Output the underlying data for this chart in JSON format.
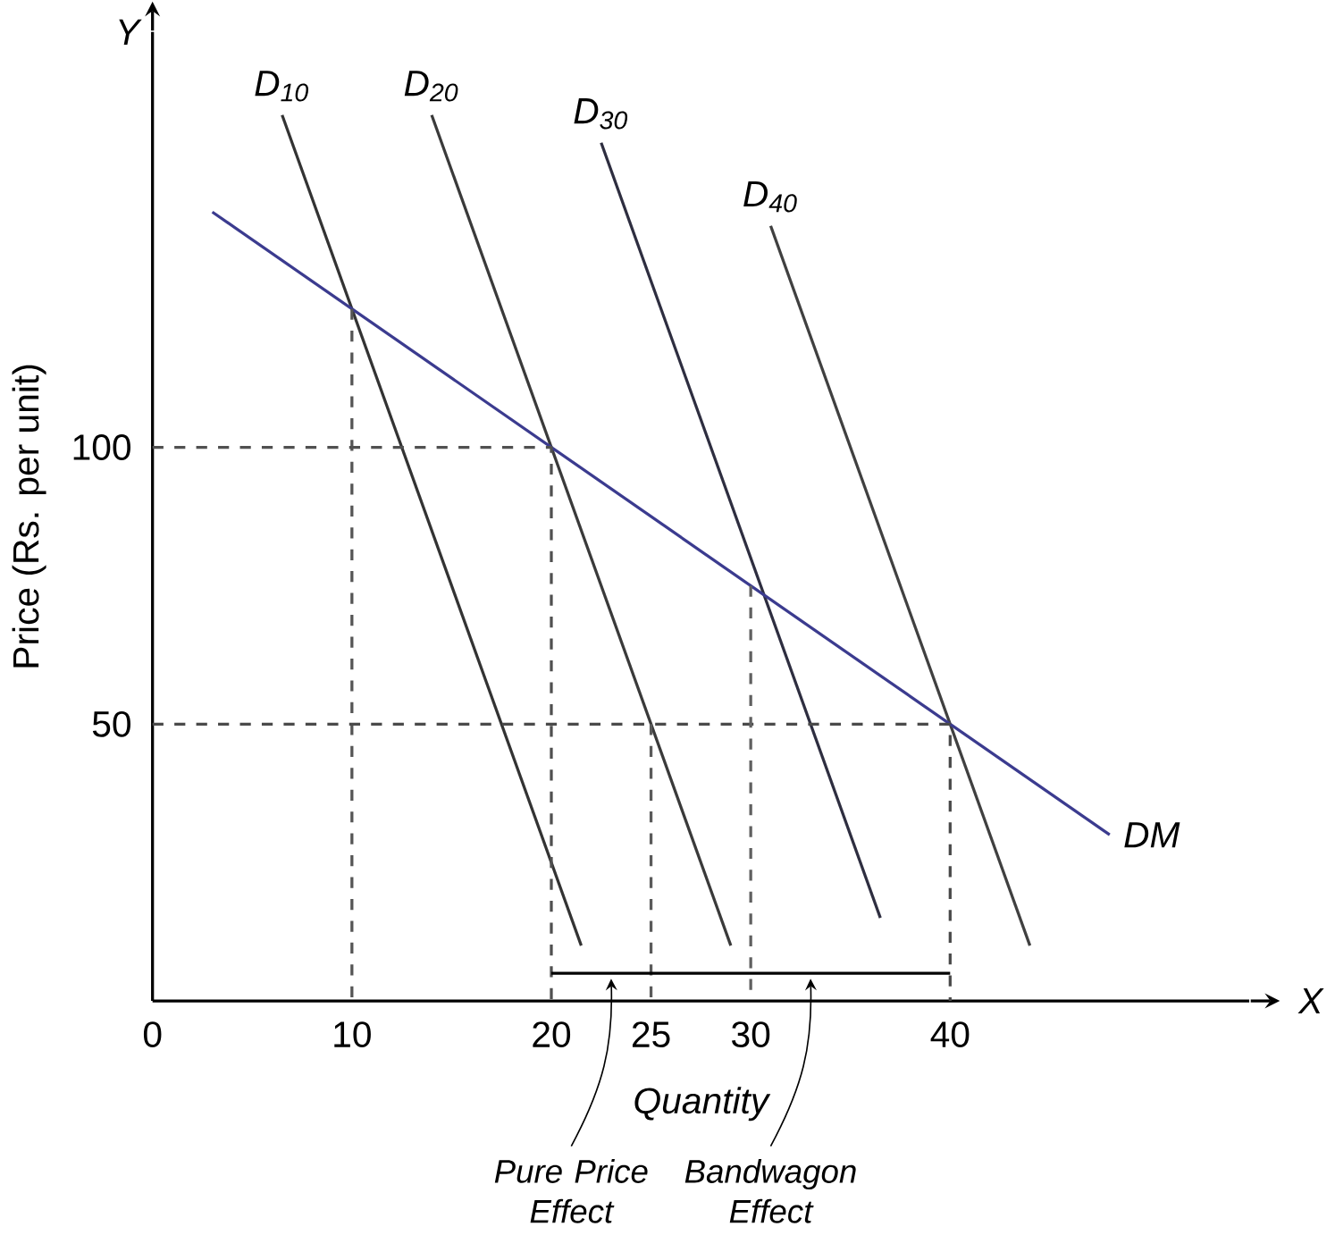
{
  "chart_data": {
    "type": "line",
    "xlabel": "Quantity",
    "ylabel": "Price (Rs. per unit)",
    "xlim": [
      0,
      55
    ],
    "ylim": [
      0,
      175
    ],
    "xticks": [
      0,
      10,
      20,
      25,
      30,
      40
    ],
    "yticks": [
      50,
      100
    ],
    "grid": false,
    "legend": false,
    "marker": "none",
    "series": [
      {
        "name": "D$_{10}$",
        "color": "#333333",
        "x": [
          6.5,
          21.5
        ],
        "values": [
          160,
          10
        ]
      },
      {
        "name": "D$_{20}$",
        "color": "#3a3a3a",
        "x": [
          14,
          29
        ],
        "values": [
          160,
          10
        ]
      },
      {
        "name": "D$_{30}$",
        "color": "#2e2e40",
        "x": [
          22.5,
          36.5
        ],
        "values": [
          155,
          15
        ]
      },
      {
        "name": "D$_{40}$",
        "color": "#404040",
        "x": [
          31,
          44
        ],
        "values": [
          140,
          10
        ]
      },
      {
        "name": "DM",
        "color": "#3b3b8f",
        "x": [
          3,
          48
        ],
        "values": [
          142.5,
          30
        ]
      },
      {
        "color": "#555555",
        "line_style": "dashed",
        "x": [
          10,
          10
        ],
        "values": [
          125,
          0
        ]
      },
      {
        "color": "#505050",
        "line_style": "dashed",
        "x": [
          0,
          20,
          20
        ],
        "values": [
          100,
          100,
          0
        ]
      },
      {
        "color": "#4a4a4a",
        "line_style": "dashed",
        "x": [
          0,
          40,
          40
        ],
        "values": [
          50,
          50,
          0
        ]
      },
      {
        "color": "#5a5a5a",
        "line_style": "dashed",
        "x": [
          25,
          25
        ],
        "values": [
          50,
          0
        ]
      },
      {
        "color": "#606060",
        "line_style": "dashed",
        "x": [
          30,
          30
        ],
        "values": [
          75,
          0
        ]
      },
      {
        "color": "#000000",
        "x": [
          20,
          25,
          40
        ],
        "values": [
          5,
          5,
          5
        ]
      }
    ],
    "annotations": [
      {
        "text": "Pure Price Effect",
        "x": 23,
        "y": 5
      },
      {
        "text": "Bandwagon Effect",
        "x": 33,
        "y": 5
      },
      "Y",
      "X"
    ]
  }
}
